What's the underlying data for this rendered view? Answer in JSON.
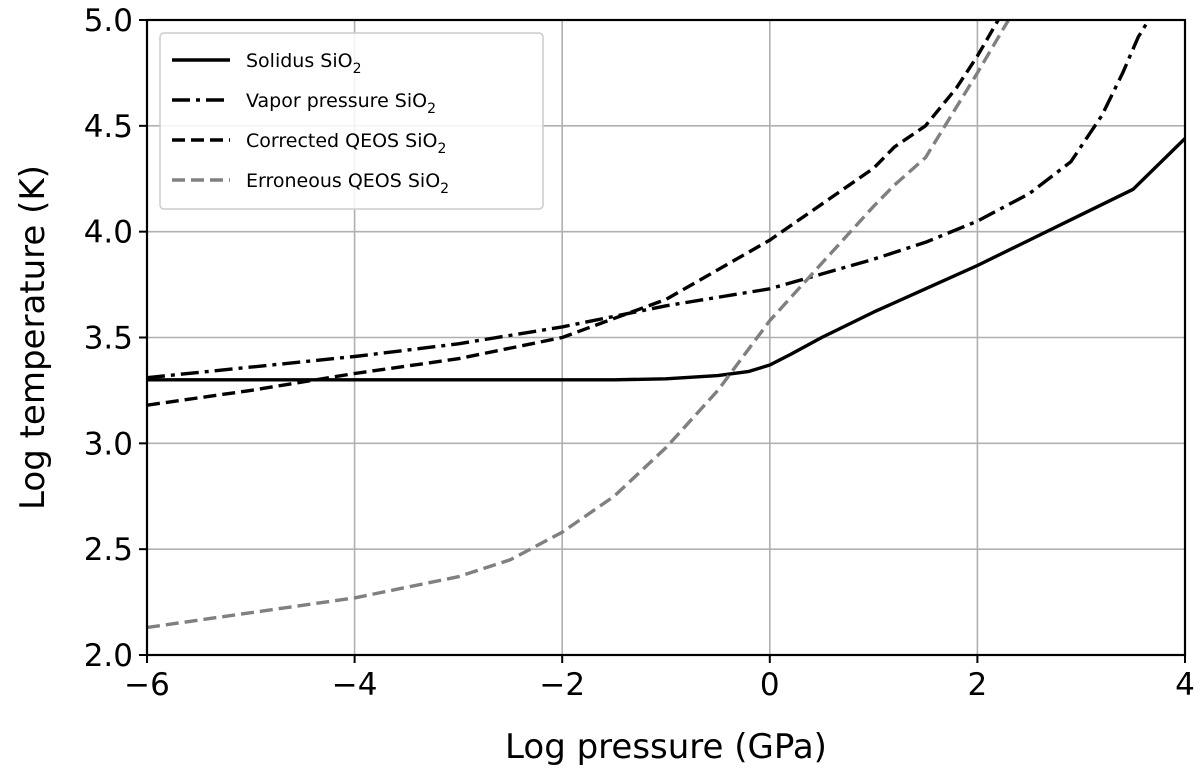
{
  "chart_data": {
    "type": "line",
    "title": "",
    "xlabel": "Log pressure (GPa)",
    "ylabel": "Log temperature (K)",
    "xlim": [
      -6,
      4
    ],
    "ylim": [
      2.0,
      5.0
    ],
    "x_ticks": [
      -6,
      -4,
      -2,
      0,
      2,
      4
    ],
    "x_tick_labels": [
      "−6",
      "−4",
      "−2",
      "0",
      "2",
      "4"
    ],
    "y_ticks": [
      2.0,
      2.5,
      3.0,
      3.5,
      4.0,
      4.5,
      5.0
    ],
    "y_tick_labels": [
      "2.0",
      "2.5",
      "3.0",
      "3.5",
      "4.0",
      "4.5",
      "5.0"
    ],
    "grid": true,
    "legend_position": "top-left",
    "series": [
      {
        "name": "Solidus SiO2",
        "legend_base": "Solidus SiO",
        "legend_sub": "2",
        "color": "#000000",
        "style": "solid",
        "x": [
          -6,
          -5,
          -4,
          -3,
          -2,
          -1.5,
          -1,
          -0.5,
          -0.2,
          0,
          0.2,
          0.5,
          1,
          1.5,
          2,
          2.5,
          3,
          3.5,
          4
        ],
        "y": [
          3.3,
          3.3,
          3.3,
          3.3,
          3.3,
          3.3,
          3.305,
          3.32,
          3.34,
          3.37,
          3.42,
          3.5,
          3.62,
          3.73,
          3.84,
          3.96,
          4.08,
          4.2,
          4.44
        ]
      },
      {
        "name": "Vapor pressure SiO2",
        "legend_base": "Vapor pressure SiO",
        "legend_sub": "2",
        "color": "#000000",
        "style": "dashdot",
        "x": [
          -6,
          -5,
          -4,
          -3,
          -2,
          -1,
          0,
          0.5,
          1,
          1.5,
          2,
          2.5,
          2.9,
          3.2,
          3.4,
          3.55,
          3.65
        ],
        "y": [
          3.31,
          3.36,
          3.41,
          3.47,
          3.55,
          3.65,
          3.73,
          3.8,
          3.87,
          3.95,
          4.05,
          4.18,
          4.33,
          4.55,
          4.75,
          4.92,
          5.0
        ]
      },
      {
        "name": "Corrected QEOS SiO2",
        "legend_base": "Corrected QEOS SiO",
        "legend_sub": "2",
        "color": "#000000",
        "style": "dashed",
        "x": [
          -6,
          -5,
          -4,
          -3,
          -2,
          -1,
          0,
          0.5,
          1,
          1.2,
          1.5,
          1.8,
          2,
          2.2
        ],
        "y": [
          3.18,
          3.25,
          3.33,
          3.4,
          3.5,
          3.68,
          3.96,
          4.13,
          4.3,
          4.4,
          4.5,
          4.68,
          4.83,
          5.0
        ]
      },
      {
        "name": "Erroneous QEOS SiO2",
        "legend_base": "Erroneous QEOS SiO",
        "legend_sub": "2",
        "color": "#808080",
        "style": "dashed",
        "x": [
          -6,
          -5,
          -4,
          -3,
          -2.5,
          -2,
          -1.5,
          -1,
          -0.5,
          0,
          0.5,
          1,
          1.2,
          1.5,
          2,
          2.3
        ],
        "y": [
          2.13,
          2.2,
          2.27,
          2.37,
          2.45,
          2.58,
          2.75,
          2.98,
          3.25,
          3.58,
          3.85,
          4.12,
          4.22,
          4.35,
          4.75,
          5.0
        ]
      }
    ]
  }
}
